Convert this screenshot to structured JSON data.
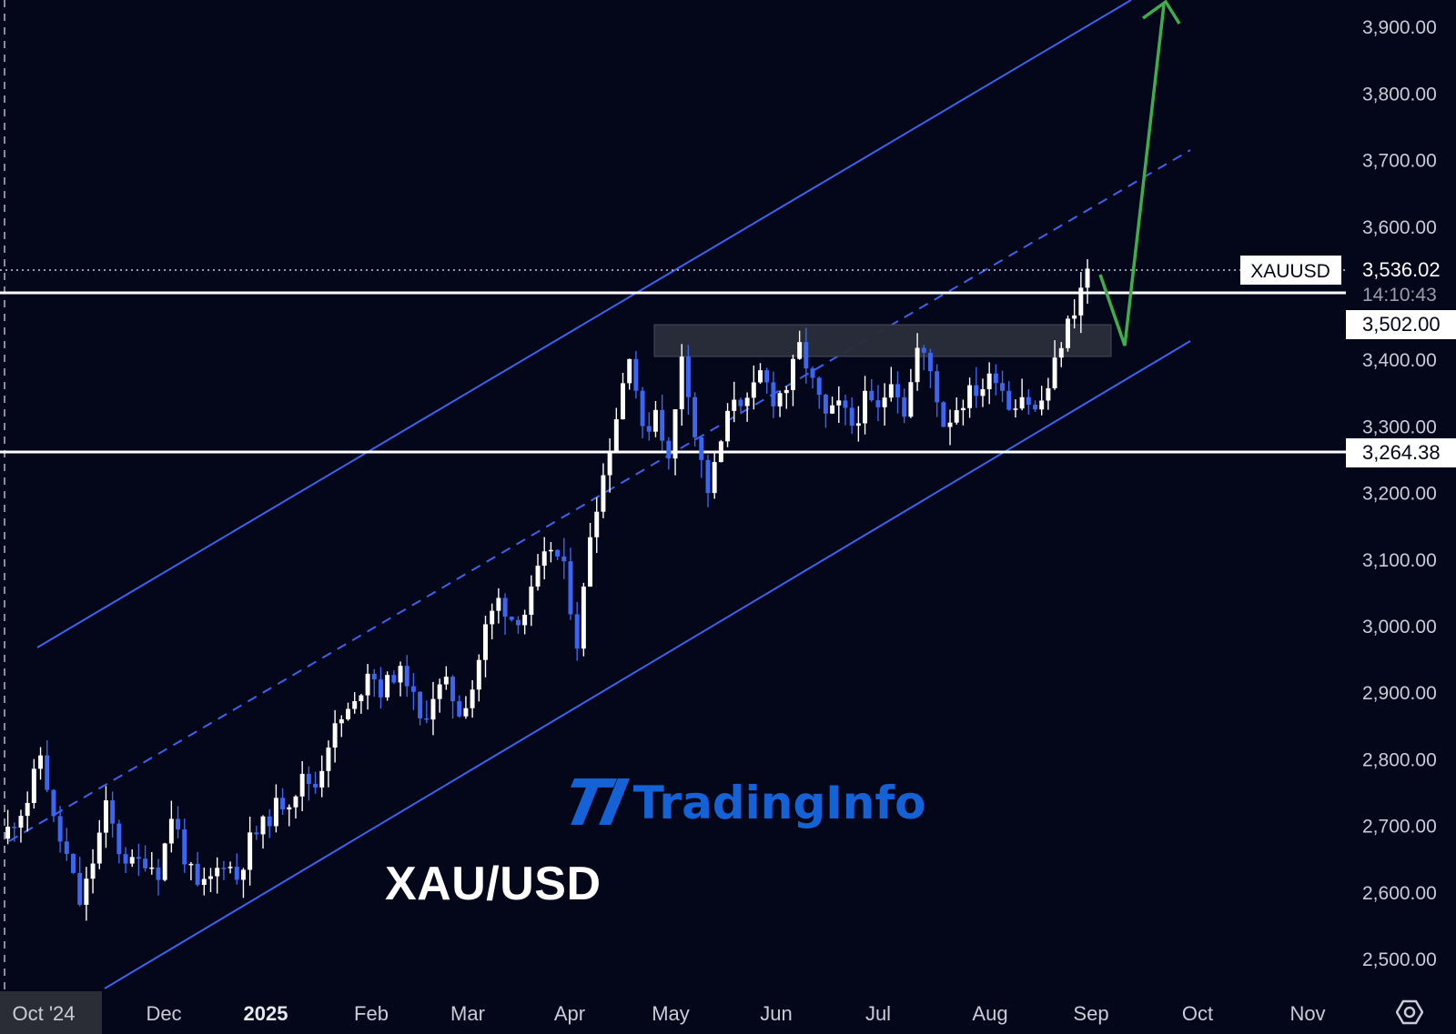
{
  "chart_data": {
    "type": "candlestick",
    "title": "XAU/USD",
    "symbol": "XAUUSD",
    "last_price": "3,536.02",
    "countdown": "14:10:43",
    "levels": [
      {
        "label": "3,502.00",
        "value": 3502.0
      },
      {
        "label": "3,264.38",
        "value": 3264.38
      }
    ],
    "y_ticks": [
      "3,900.00",
      "3,800.00",
      "3,700.00",
      "3,600.00",
      "3,400.00",
      "3,300.00",
      "3,200.00",
      "3,100.00",
      "3,000.00",
      "2,900.00",
      "2,800.00",
      "2,700.00",
      "2,600.00",
      "2,500.00"
    ],
    "x_ticks": [
      "Oct '24",
      "Dec",
      "2025",
      "Feb",
      "Mar",
      "Apr",
      "May",
      "Jun",
      "Jul",
      "Aug",
      "Sep",
      "Oct",
      "Nov"
    ],
    "ylim": [
      2460,
      3940
    ],
    "grid": false,
    "colors": {
      "background": "#04061a",
      "up": "#ffffff",
      "down": "#3a66f0",
      "channel": "#3b63ee",
      "forecast_arrow": "#3fae4a",
      "level_line": "#ffffff",
      "zone": "#2a2d3a"
    },
    "path_points": [
      [
        0,
        2680
      ],
      [
        4,
        2740
      ],
      [
        6,
        2810
      ],
      [
        8,
        2700
      ],
      [
        10,
        2650
      ],
      [
        12,
        2580
      ],
      [
        14,
        2650
      ],
      [
        16,
        2730
      ],
      [
        18,
        2660
      ],
      [
        20,
        2640
      ],
      [
        22,
        2650
      ],
      [
        24,
        2630
      ],
      [
        26,
        2720
      ],
      [
        28,
        2650
      ],
      [
        30,
        2600
      ],
      [
        32,
        2620
      ],
      [
        34,
        2650
      ],
      [
        36,
        2620
      ],
      [
        38,
        2680
      ],
      [
        40,
        2700
      ],
      [
        42,
        2730
      ],
      [
        44,
        2740
      ],
      [
        46,
        2770
      ],
      [
        48,
        2760
      ],
      [
        50,
        2830
      ],
      [
        52,
        2860
      ],
      [
        54,
        2880
      ],
      [
        56,
        2940
      ],
      [
        58,
        2900
      ],
      [
        60,
        2930
      ],
      [
        62,
        2920
      ],
      [
        64,
        2850
      ],
      [
        66,
        2900
      ],
      [
        68,
        2910
      ],
      [
        70,
        2870
      ],
      [
        72,
        2910
      ],
      [
        74,
        3000
      ],
      [
        76,
        3040
      ],
      [
        78,
        3010
      ],
      [
        80,
        3020
      ],
      [
        82,
        3080
      ],
      [
        84,
        3120
      ],
      [
        86,
        3080
      ],
      [
        88,
        2970
      ],
      [
        90,
        3150
      ],
      [
        92,
        3230
      ],
      [
        94,
        3320
      ],
      [
        96,
        3420
      ],
      [
        98,
        3280
      ],
      [
        100,
        3330
      ],
      [
        102,
        3240
      ],
      [
        104,
        3420
      ],
      [
        106,
        3280
      ],
      [
        108,
        3200
      ],
      [
        110,
        3280
      ],
      [
        112,
        3350
      ],
      [
        114,
        3330
      ],
      [
        116,
        3380
      ],
      [
        118,
        3340
      ],
      [
        120,
        3360
      ],
      [
        122,
        3420
      ],
      [
        124,
        3360
      ],
      [
        126,
        3310
      ],
      [
        128,
        3330
      ],
      [
        130,
        3300
      ],
      [
        132,
        3340
      ],
      [
        134,
        3320
      ],
      [
        136,
        3380
      ],
      [
        138,
        3320
      ],
      [
        140,
        3420
      ],
      [
        142,
        3380
      ],
      [
        144,
        3300
      ],
      [
        146,
        3330
      ],
      [
        148,
        3350
      ],
      [
        150,
        3360
      ],
      [
        152,
        3380
      ],
      [
        154,
        3330
      ],
      [
        156,
        3350
      ],
      [
        158,
        3320
      ],
      [
        160,
        3360
      ],
      [
        162,
        3430
      ],
      [
        164,
        3480
      ],
      [
        166,
        3536
      ]
    ],
    "x_domain": [
      0,
      168
    ]
  }
}
